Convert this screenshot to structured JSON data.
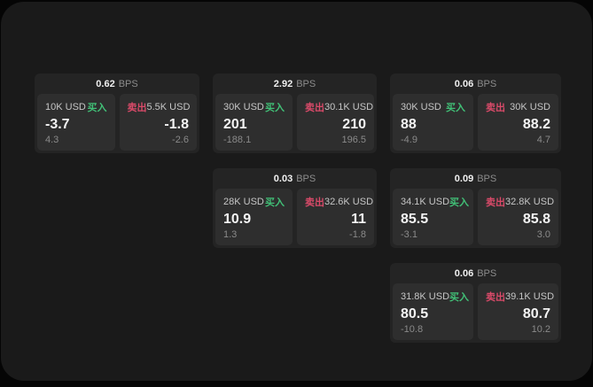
{
  "colors": {
    "background_outer": "#050505",
    "surface": "#1a1a1a",
    "card": "#242424",
    "tile": "#2e2e2e",
    "buy_accent": "#41c077",
    "sell_accent": "#d94a69"
  },
  "labels": {
    "bps_suffix": "BPS",
    "buy": "买入",
    "sell": "卖出"
  },
  "cards": [
    {
      "col": 1,
      "row": 1,
      "bps": "0.62",
      "buy": {
        "size": "10K USD",
        "price": "-3.7",
        "sub": "4.3"
      },
      "sell": {
        "size": "5.5K USD",
        "price": "-1.8",
        "sub": "-2.6"
      }
    },
    {
      "col": 2,
      "row": 1,
      "bps": "2.92",
      "buy": {
        "size": "30K USD",
        "price": "201",
        "sub": "-188.1"
      },
      "sell": {
        "size": "30.1K USD",
        "price": "210",
        "sub": "196.5"
      }
    },
    {
      "col": 3,
      "row": 1,
      "bps": "0.06",
      "buy": {
        "size": "30K USD",
        "price": "88",
        "sub": "-4.9"
      },
      "sell": {
        "size": "30K USD",
        "price": "88.2",
        "sub": "4.7"
      }
    },
    {
      "col": 2,
      "row": 2,
      "bps": "0.03",
      "buy": {
        "size": "28K USD",
        "price": "10.9",
        "sub": "1.3"
      },
      "sell": {
        "size": "32.6K USD",
        "price": "11",
        "sub": "-1.8"
      }
    },
    {
      "col": 3,
      "row": 2,
      "bps": "0.09",
      "buy": {
        "size": "34.1K USD",
        "price": "85.5",
        "sub": "-3.1"
      },
      "sell": {
        "size": "32.8K USD",
        "price": "85.8",
        "sub": "3.0"
      }
    },
    {
      "col": 3,
      "row": 3,
      "bps": "0.06",
      "buy": {
        "size": "31.8K USD",
        "price": "80.5",
        "sub": "-10.8"
      },
      "sell": {
        "size": "39.1K USD",
        "price": "80.7",
        "sub": "10.2"
      }
    }
  ]
}
